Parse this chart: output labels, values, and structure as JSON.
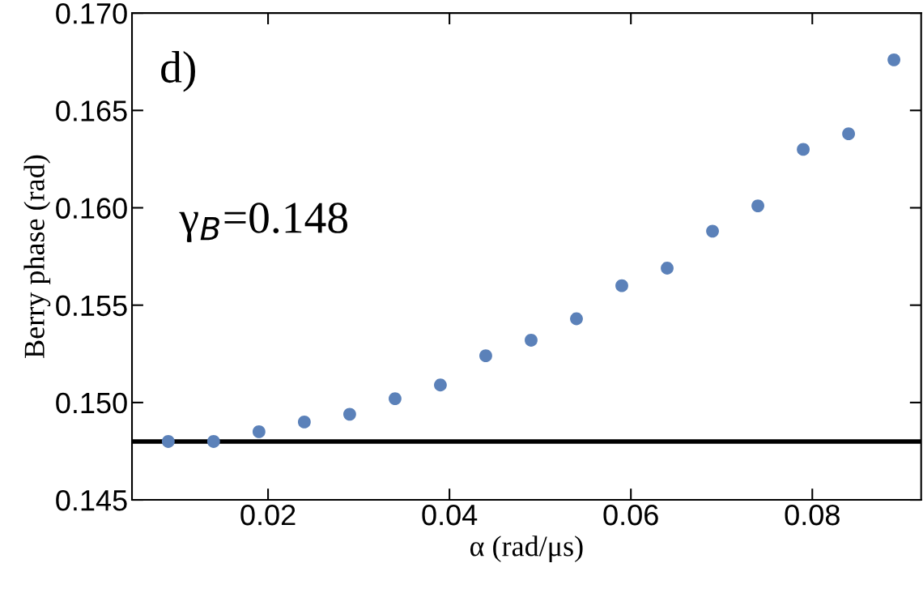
{
  "chart_data": {
    "type": "scatter",
    "xlabel": "α (rad/μs)",
    "ylabel": "Berry phase (rad)",
    "x": [
      0.009,
      0.014,
      0.019,
      0.024,
      0.029,
      0.034,
      0.039,
      0.044,
      0.049,
      0.054,
      0.059,
      0.064,
      0.069,
      0.074,
      0.079,
      0.084,
      0.089
    ],
    "series": [
      {
        "color": "#5b81b9",
        "values": [
          0.148,
          0.148,
          0.1485,
          0.149,
          0.1494,
          0.1502,
          0.1509,
          0.1524,
          0.1532,
          0.1543,
          0.156,
          0.1569,
          0.1588,
          0.1601,
          0.163,
          0.1638,
          0.1676
        ]
      }
    ],
    "xlim": [
      0.005,
      0.092
    ],
    "ylim": [
      0.145,
      0.17
    ],
    "xticks": [
      0.02,
      0.04,
      0.06,
      0.08
    ],
    "yticks": [
      0.145,
      {
        "value": 0.15,
        "label": "0.150"
      },
      0.155,
      {
        "value": 0.16,
        "label": "0.160"
      },
      0.165,
      {
        "value": 0.17,
        "label": "0.170"
      }
    ],
    "ref_lines": [
      {
        "axis": "y",
        "value": 0.148,
        "color": "#000000",
        "line_style": "solid"
      }
    ],
    "annotations": [
      "d)",
      "γ$_{B}$=0.148"
    ],
    "grid": false,
    "marker": "circle"
  }
}
